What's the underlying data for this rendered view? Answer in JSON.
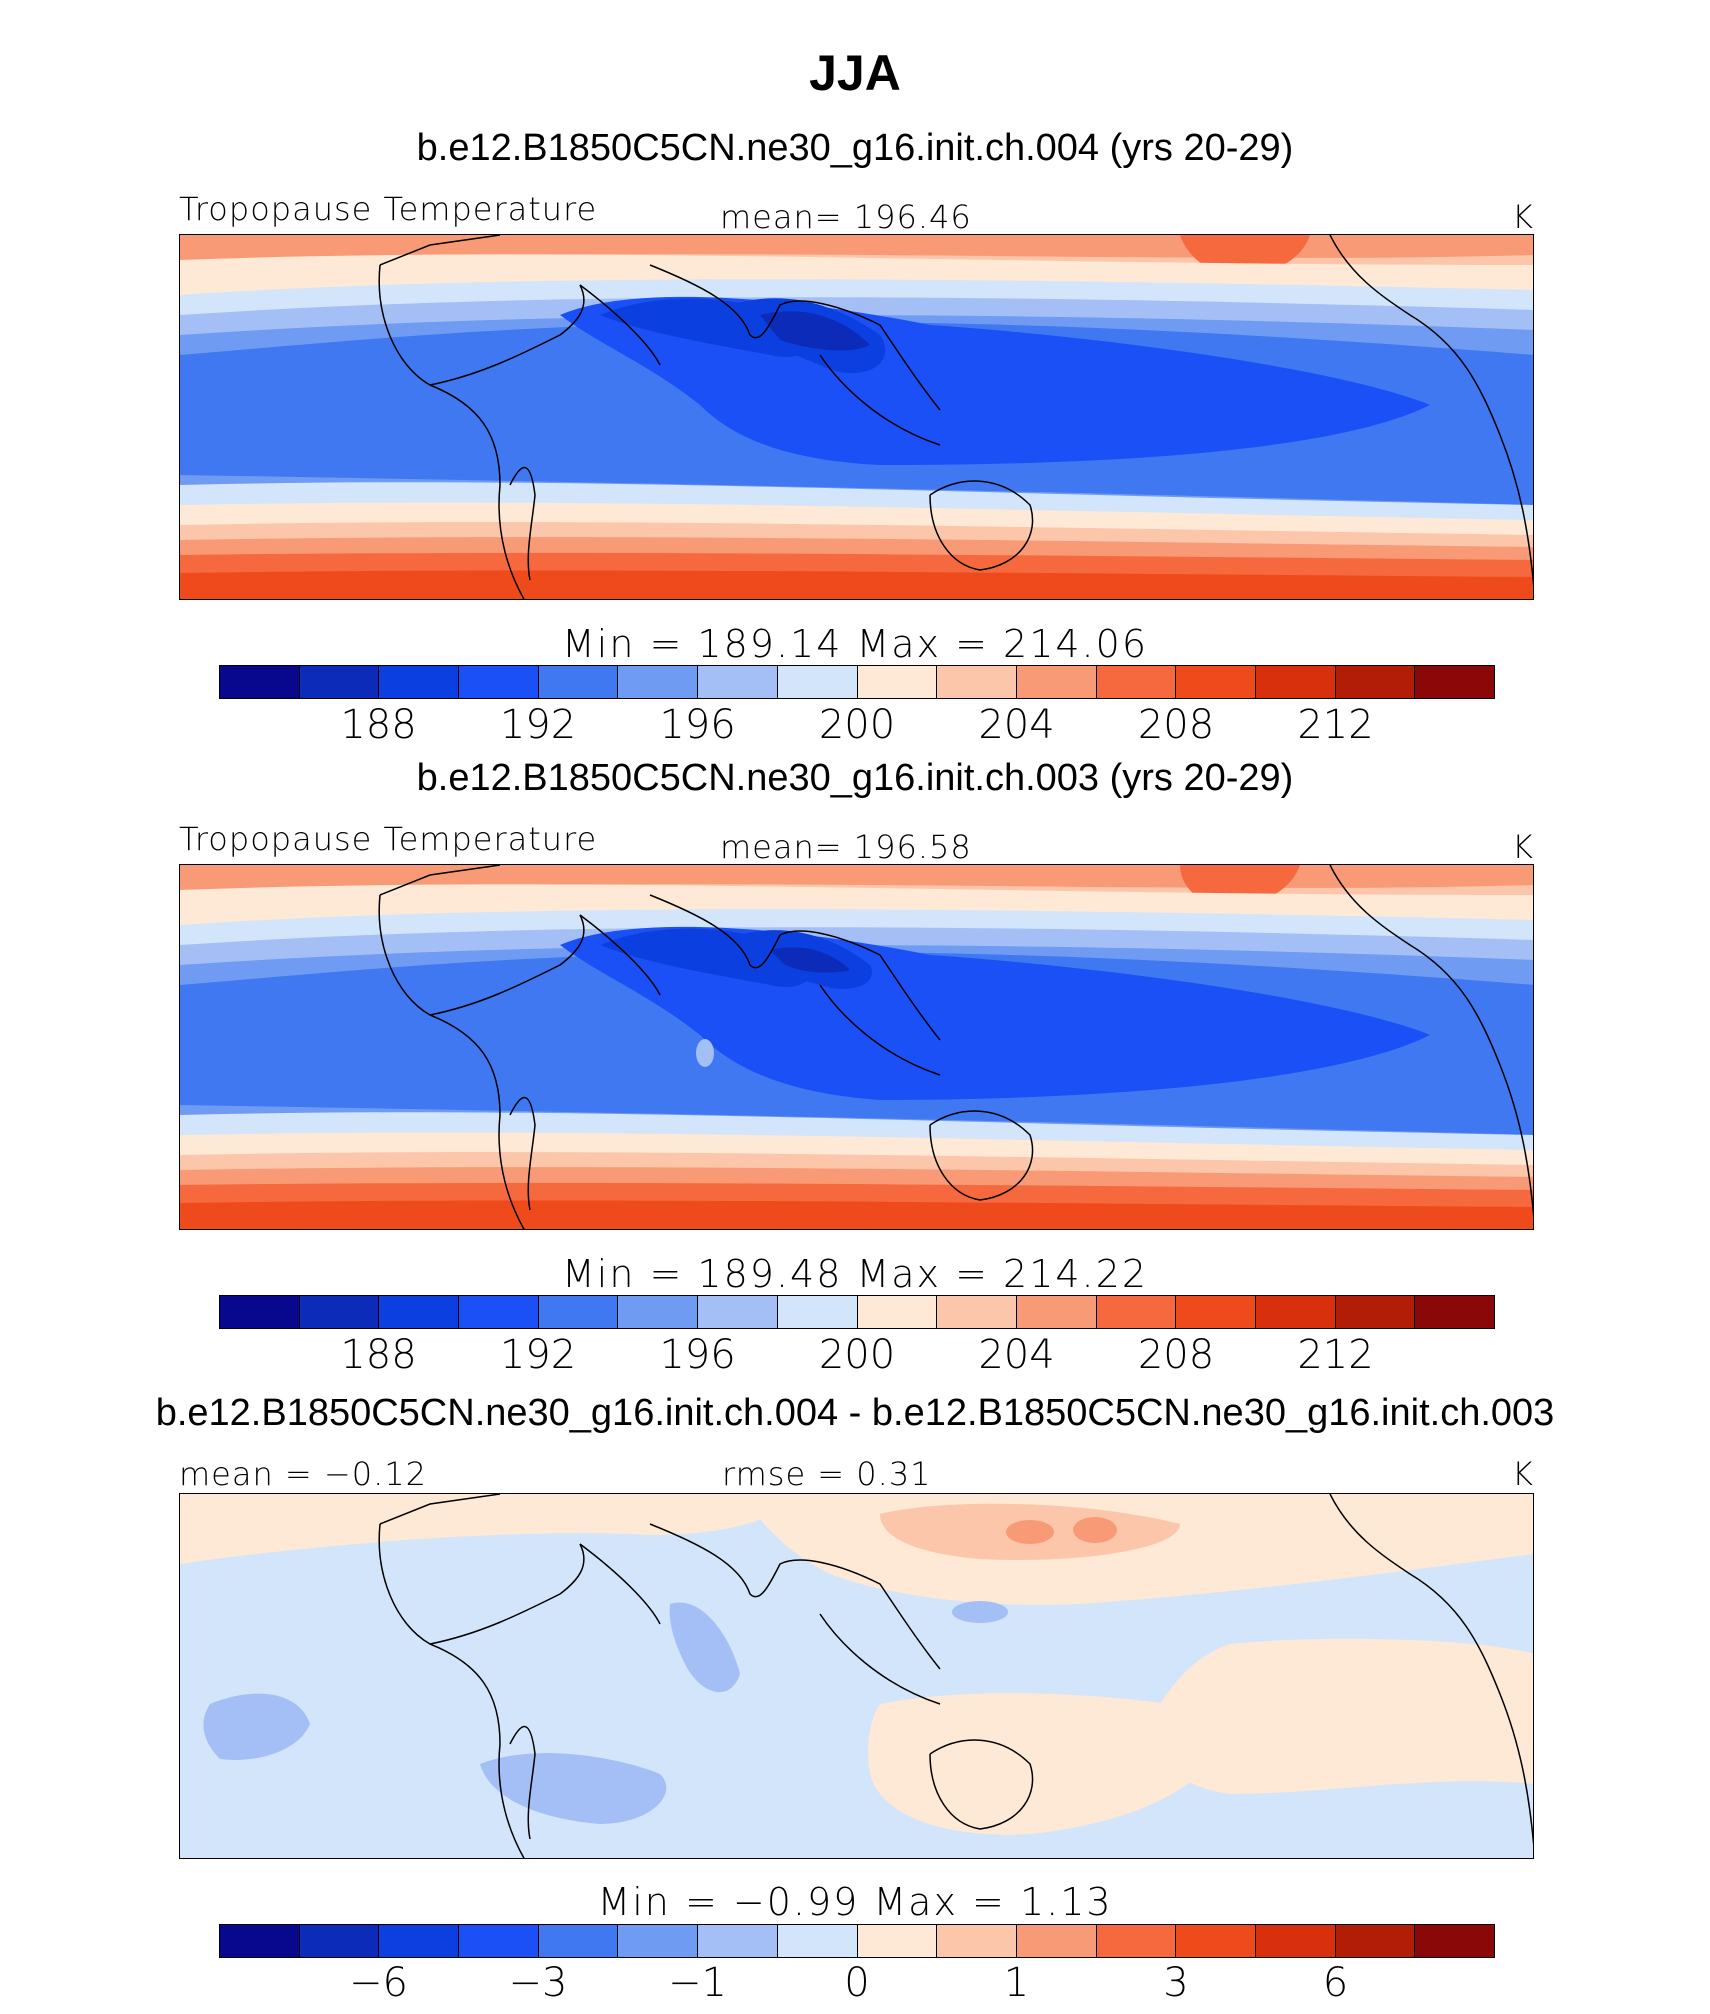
{
  "figure": {
    "title": "JJA"
  },
  "colors": {
    "palette": [
      "#08088f",
      "#0b2bb8",
      "#0c3fdf",
      "#1a50f5",
      "#3f78f0",
      "#6f9bf2",
      "#a3bff5",
      "#d3e5fa",
      "#fde9d6",
      "#fbc6a9",
      "#f89a76",
      "#f6693e",
      "#ef4a1c",
      "#d8300d",
      "#b21d08",
      "#8b0808"
    ]
  },
  "panels": [
    {
      "case": "b.e12.B1850C5CN.ne30_g16.init.ch.004 (yrs 20-29)",
      "variable": "Tropopause Temperature",
      "stat": "mean=  196.46",
      "units": "K",
      "minmax": "Min  =  189.14  Max  =  214.06",
      "ticks": [
        "188",
        "192",
        "196",
        "200",
        "204",
        "208",
        "212"
      ]
    },
    {
      "case": "b.e12.B1850C5CN.ne30_g16.init.ch.003 (yrs 20-29)",
      "variable": "Tropopause Temperature",
      "stat": "mean=  196.58",
      "units": "K",
      "minmax": "Min  =  189.48  Max  =  214.22",
      "ticks": [
        "188",
        "192",
        "196",
        "200",
        "204",
        "208",
        "212"
      ]
    },
    {
      "case": "b.e12.B1850C5CN.ne30_g16.init.ch.004 - b.e12.B1850C5CN.ne30_g16.init.ch.003",
      "stat_left": "mean  =   −0.12",
      "stat_right": "rmse  =     0.31",
      "units": "K",
      "minmax": "Min  =    −0.99  Max  =     1.13",
      "ticks": [
        "−6",
        "−3",
        "−1",
        "0",
        "1",
        "3",
        "6"
      ]
    }
  ]
}
